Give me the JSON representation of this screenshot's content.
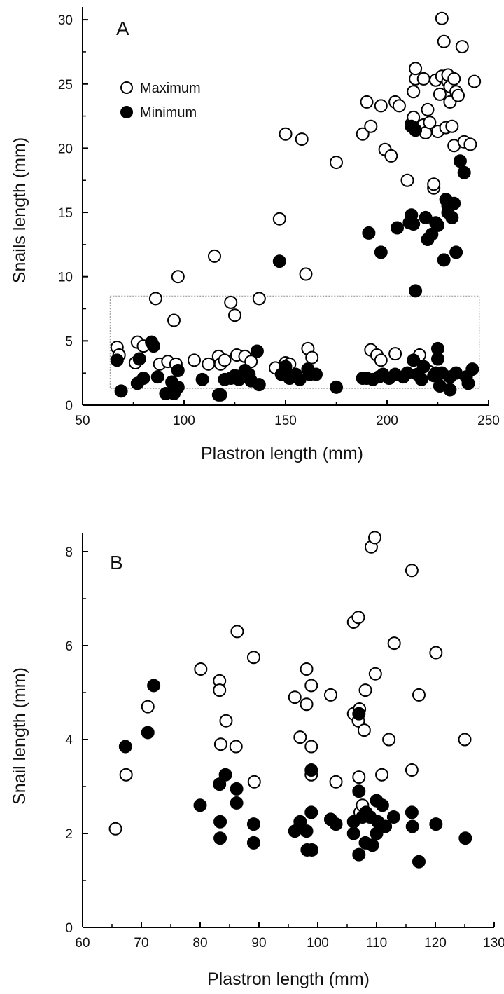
{
  "chart_data": [
    {
      "type": "scatter",
      "panel_label": "A",
      "xlabel": "Plastron length (mm)",
      "ylabel": "Snails length (mm)",
      "xlim": [
        50,
        250
      ],
      "ylim": [
        0,
        30
      ],
      "xticks": [
        50,
        100,
        150,
        200,
        250
      ],
      "yticks": [
        0,
        5,
        10,
        15,
        20,
        25,
        30
      ],
      "grid": false,
      "legend_position": "top-left",
      "inset_box": {
        "x0": 67,
        "x1": 242,
        "y0": 1.3,
        "y1": 8.5
      },
      "series": [
        {
          "name": "Maximum",
          "marker": "open-circle",
          "points": [
            [
              67,
              4.5
            ],
            [
              68,
              3.9
            ],
            [
              76,
              3.3
            ],
            [
              77,
              4.9
            ],
            [
              80,
              4.6
            ],
            [
              86,
              8.3
            ],
            [
              88,
              3.2
            ],
            [
              92,
              3.4
            ],
            [
              95,
              6.6
            ],
            [
              96,
              3.2
            ],
            [
              97,
              10.0
            ],
            [
              105,
              3.5
            ],
            [
              112,
              3.2
            ],
            [
              115,
              11.6
            ],
            [
              117,
              3.8
            ],
            [
              118,
              3.2
            ],
            [
              120,
              3.5
            ],
            [
              123,
              8.0
            ],
            [
              125,
              7.0
            ],
            [
              126,
              3.9
            ],
            [
              130,
              3.8
            ],
            [
              133,
              3.4
            ],
            [
              137,
              8.3
            ],
            [
              145,
              2.9
            ],
            [
              147,
              14.5
            ],
            [
              150,
              3.3
            ],
            [
              150,
              21.1
            ],
            [
              152,
              3.2
            ],
            [
              158,
              20.7
            ],
            [
              160,
              10.2
            ],
            [
              161,
              4.4
            ],
            [
              163,
              3.7
            ],
            [
              175,
              18.9
            ],
            [
              188,
              21.1
            ],
            [
              190,
              23.6
            ],
            [
              192,
              21.7
            ],
            [
              192,
              4.3
            ],
            [
              195,
              3.9
            ],
            [
              197,
              3.5
            ],
            [
              197,
              23.3
            ],
            [
              199,
              19.9
            ],
            [
              202,
              19.4
            ],
            [
              204,
              4.0
            ],
            [
              204,
              23.6
            ],
            [
              206,
              23.3
            ],
            [
              210,
              17.5
            ],
            [
              212,
              21.9
            ],
            [
              213,
              22.4
            ],
            [
              213,
              24.4
            ],
            [
              214,
              25.4
            ],
            [
              214,
              26.2
            ],
            [
              215,
              3.6
            ],
            [
              216,
              3.9
            ],
            [
              218,
              21.8
            ],
            [
              218,
              25.4
            ],
            [
              219,
              21.2
            ],
            [
              220,
              23.0
            ],
            [
              221,
              22.0
            ],
            [
              221,
              2.6
            ],
            [
              223,
              16.9
            ],
            [
              223,
              17.2
            ],
            [
              224,
              25.3
            ],
            [
              225,
              21.3
            ],
            [
              226,
              24.2
            ],
            [
              227,
              25.6
            ],
            [
              227,
              30.1
            ],
            [
              228,
              28.3
            ],
            [
              229,
              21.6
            ],
            [
              230,
              25.2
            ],
            [
              230,
              25.7
            ],
            [
              231,
              23.6
            ],
            [
              231,
              24.8
            ],
            [
              232,
              21.7
            ],
            [
              233,
              20.2
            ],
            [
              233,
              25.4
            ],
            [
              234,
              24.4
            ],
            [
              235,
              24.1
            ],
            [
              237,
              27.9
            ],
            [
              238,
              20.5
            ],
            [
              241,
              20.3
            ],
            [
              243,
              25.2
            ]
          ]
        },
        {
          "name": "Minimum",
          "marker": "filled-circle",
          "points": [
            [
              67,
              3.5
            ],
            [
              69,
              1.1
            ],
            [
              77,
              1.7
            ],
            [
              78,
              3.6
            ],
            [
              80,
              2.1
            ],
            [
              84,
              4.9
            ],
            [
              85,
              4.6
            ],
            [
              87,
              2.2
            ],
            [
              91,
              0.9
            ],
            [
              94,
              1.8
            ],
            [
              95,
              0.9
            ],
            [
              97,
              2.7
            ],
            [
              97,
              1.4
            ],
            [
              109,
              2.0
            ],
            [
              117,
              0.8
            ],
            [
              118,
              0.8
            ],
            [
              120,
              2.0
            ],
            [
              123,
              2.1
            ],
            [
              125,
              2.3
            ],
            [
              127,
              2.0
            ],
            [
              130,
              2.7
            ],
            [
              132,
              2.4
            ],
            [
              133,
              1.9
            ],
            [
              136,
              4.2
            ],
            [
              137,
              1.6
            ],
            [
              147,
              11.2
            ],
            [
              148,
              2.4
            ],
            [
              150,
              3.0
            ],
            [
              152,
              2.1
            ],
            [
              155,
              2.4
            ],
            [
              157,
              2.0
            ],
            [
              161,
              2.8
            ],
            [
              162,
              2.4
            ],
            [
              165,
              2.4
            ],
            [
              175,
              1.4
            ],
            [
              188,
              2.1
            ],
            [
              190,
              2.1
            ],
            [
              191,
              13.4
            ],
            [
              193,
              2.0
            ],
            [
              196,
              2.2
            ],
            [
              197,
              11.9
            ],
            [
              198,
              2.4
            ],
            [
              201,
              2.1
            ],
            [
              204,
              2.4
            ],
            [
              205,
              13.8
            ],
            [
              208,
              2.2
            ],
            [
              210,
              2.5
            ],
            [
              211,
              14.2
            ],
            [
              212,
              21.7
            ],
            [
              212,
              14.8
            ],
            [
              213,
              14.1
            ],
            [
              213,
              3.5
            ],
            [
              214,
              8.9
            ],
            [
              214,
              21.4
            ],
            [
              215,
              2.4
            ],
            [
              217,
              2.0
            ],
            [
              218,
              3.0
            ],
            [
              219,
              14.6
            ],
            [
              220,
              12.9
            ],
            [
              222,
              13.3
            ],
            [
              223,
              2.3
            ],
            [
              224,
              2.5
            ],
            [
              224,
              14.2
            ],
            [
              225,
              4.4
            ],
            [
              225,
              14.0
            ],
            [
              225,
              3.6
            ],
            [
              226,
              1.5
            ],
            [
              227,
              2.5
            ],
            [
              228,
              11.3
            ],
            [
              229,
              16.0
            ],
            [
              230,
              15.5
            ],
            [
              230,
              15.0
            ],
            [
              231,
              2.2
            ],
            [
              231,
              1.2
            ],
            [
              232,
              14.6
            ],
            [
              233,
              15.7
            ],
            [
              234,
              11.9
            ],
            [
              234,
              2.5
            ],
            [
              236,
              19.0
            ],
            [
              238,
              18.1
            ],
            [
              239,
              2.2
            ],
            [
              240,
              1.7
            ],
            [
              242,
              2.8
            ]
          ]
        }
      ]
    },
    {
      "type": "scatter",
      "panel_label": "B",
      "xlabel": "Plastron length (mm)",
      "ylabel": "Snail length (mm)",
      "xlim": [
        60,
        130
      ],
      "ylim": [
        0,
        8.6
      ],
      "xticks": [
        60,
        70,
        80,
        90,
        100,
        110,
        120,
        130
      ],
      "yticks": [
        0,
        2,
        4,
        6,
        8
      ],
      "grid": false,
      "series": [
        {
          "name": "Maximum",
          "marker": "open-circle",
          "points": [
            [
              65.6,
              2.1
            ],
            [
              67.4,
              3.25
            ],
            [
              71.1,
              4.7
            ],
            [
              80.1,
              5.5
            ],
            [
              83.3,
              5.25
            ],
            [
              83.3,
              5.05
            ],
            [
              83.5,
              3.9
            ],
            [
              84.4,
              4.4
            ],
            [
              86.1,
              3.85
            ],
            [
              86.3,
              6.3
            ],
            [
              89.1,
              5.75
            ],
            [
              89.2,
              3.1
            ],
            [
              96.1,
              4.9
            ],
            [
              97.0,
              4.05
            ],
            [
              98.1,
              5.5
            ],
            [
              98.1,
              4.75
            ],
            [
              98.9,
              5.15
            ],
            [
              98.9,
              3.85
            ],
            [
              98.9,
              3.25
            ],
            [
              102.2,
              4.95
            ],
            [
              103.1,
              3.1
            ],
            [
              106.1,
              6.5
            ],
            [
              106.1,
              4.55
            ],
            [
              106.9,
              6.6
            ],
            [
              106.9,
              4.4
            ],
            [
              107.0,
              3.2
            ],
            [
              107.1,
              4.65
            ],
            [
              107.2,
              2.45
            ],
            [
              107.6,
              2.6
            ],
            [
              107.9,
              4.2
            ],
            [
              108.1,
              5.05
            ],
            [
              109.1,
              8.1
            ],
            [
              109.7,
              8.3
            ],
            [
              109.8,
              5.4
            ],
            [
              110.9,
              3.25
            ],
            [
              112.1,
              4.0
            ],
            [
              113.0,
              6.05
            ],
            [
              116.0,
              7.6
            ],
            [
              116.0,
              3.35
            ],
            [
              117.2,
              4.95
            ],
            [
              120.1,
              5.85
            ],
            [
              125.0,
              4.0
            ]
          ]
        },
        {
          "name": "Minimum",
          "marker": "filled-circle",
          "points": [
            [
              67.3,
              3.85
            ],
            [
              71.1,
              4.15
            ],
            [
              72.1,
              5.15
            ],
            [
              80.0,
              2.6
            ],
            [
              83.3,
              3.05
            ],
            [
              83.4,
              2.25
            ],
            [
              83.4,
              1.9
            ],
            [
              84.3,
              3.25
            ],
            [
              86.2,
              2.95
            ],
            [
              86.2,
              2.65
            ],
            [
              89.1,
              2.2
            ],
            [
              89.1,
              1.8
            ],
            [
              96.1,
              2.05
            ],
            [
              97.0,
              2.25
            ],
            [
              98.1,
              2.05
            ],
            [
              98.2,
              1.65
            ],
            [
              98.9,
              3.35
            ],
            [
              98.9,
              2.45
            ],
            [
              99.0,
              1.65
            ],
            [
              102.2,
              2.3
            ],
            [
              103.1,
              2.2
            ],
            [
              106.1,
              2.0
            ],
            [
              106.1,
              2.25
            ],
            [
              107.0,
              2.9
            ],
            [
              107.0,
              4.55
            ],
            [
              107.0,
              1.55
            ],
            [
              107.6,
              2.35
            ],
            [
              108.1,
              1.8
            ],
            [
              108.2,
              2.45
            ],
            [
              108.9,
              2.35
            ],
            [
              109.3,
              1.75
            ],
            [
              110.0,
              2.0
            ],
            [
              110.0,
              2.7
            ],
            [
              110.2,
              2.25
            ],
            [
              111.0,
              2.6
            ],
            [
              111.5,
              2.15
            ],
            [
              112.9,
              2.35
            ],
            [
              116.0,
              2.45
            ],
            [
              116.1,
              2.15
            ],
            [
              117.2,
              1.4
            ],
            [
              120.1,
              2.2
            ],
            [
              125.1,
              1.9
            ]
          ]
        }
      ]
    }
  ]
}
